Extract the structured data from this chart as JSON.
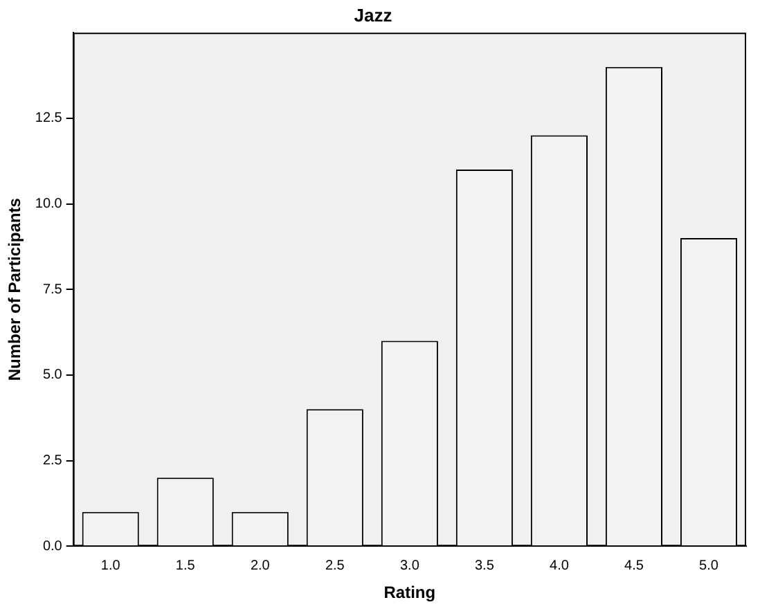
{
  "chart_data": {
    "type": "bar",
    "title": "Jazz",
    "xlabel": "Rating",
    "ylabel": "Number of Participants",
    "categories": [
      "1.0",
      "1.5",
      "2.0",
      "2.5",
      "3.0",
      "3.5",
      "4.0",
      "4.5",
      "5.0"
    ],
    "values": [
      1,
      2,
      1,
      4,
      6,
      11,
      12,
      14,
      9
    ],
    "color": "#f2f2f2",
    "ylim": [
      0,
      15
    ],
    "yticks": [
      {
        "value": 0,
        "label": "0.0"
      },
      2.5,
      {
        "value": 5,
        "label": "5.0"
      },
      7.5,
      {
        "value": 10,
        "label": "10.0"
      },
      12.5
    ],
    "grid": false,
    "legend": false
  }
}
